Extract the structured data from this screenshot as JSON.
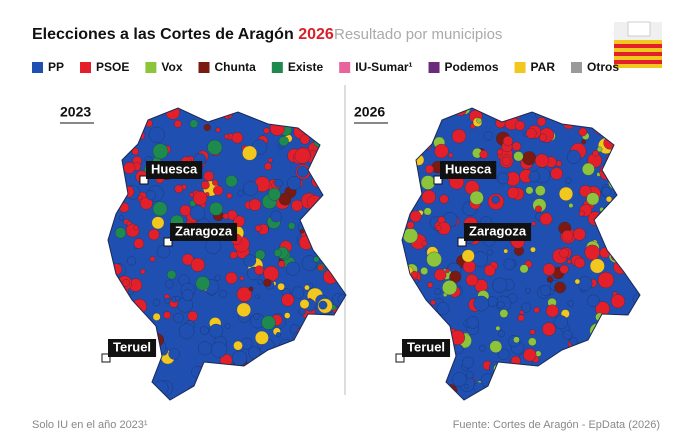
{
  "header": {
    "title": "Elecciones a las Cortes de Aragón",
    "title_year": "2026",
    "subtitle": "Resultado por municipios"
  },
  "legend": [
    {
      "label": "PP",
      "color": "#1f4fb0"
    },
    {
      "label": "PSOE",
      "color": "#e3202a"
    },
    {
      "label": "Vox",
      "color": "#8cc43c"
    },
    {
      "label": "Chunta",
      "color": "#7a1a10"
    },
    {
      "label": "Existe",
      "color": "#1e8a4e"
    },
    {
      "label": "IU-Sumar¹",
      "color": "#e8649a"
    },
    {
      "label": "Podemos",
      "color": "#6b2a7a"
    },
    {
      "label": "PAR",
      "color": "#f2c81e"
    },
    {
      "label": "Otros",
      "color": "#9a9a9a"
    }
  ],
  "maps": [
    {
      "year": "2023",
      "cities": [
        "Huesca",
        "Zaragoza",
        "Teruel"
      ]
    },
    {
      "year": "2026",
      "cities": [
        "Huesca",
        "Zaragoza",
        "Teruel"
      ]
    }
  ],
  "footer": {
    "note": "Solo IU en el año 2023¹",
    "source": "Fuente: Cortes de Aragón - EpData (2026)"
  }
}
